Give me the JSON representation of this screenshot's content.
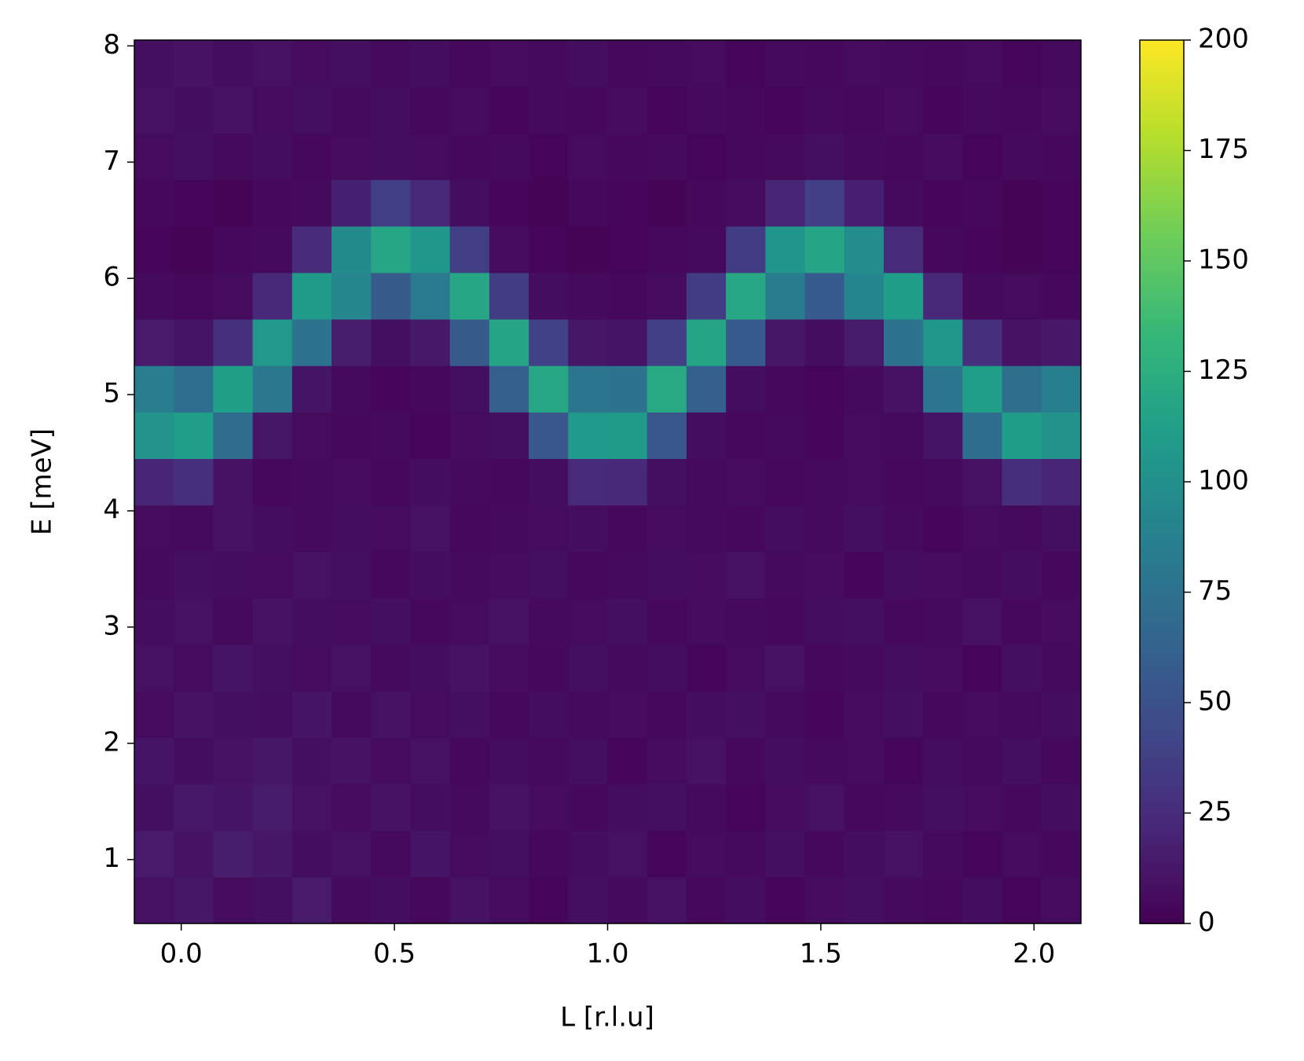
{
  "chart_data": {
    "type": "heatmap",
    "colormap": "viridis",
    "xlabel": "L [r.l.u]",
    "ylabel": "E [meV]",
    "xlim": [
      -0.11,
      2.11
    ],
    "ylim": [
      0.45,
      8.05
    ],
    "xticks": [
      {
        "value": 0,
        "label": "0.0"
      },
      0.5,
      {
        "value": 1,
        "label": "1.0"
      },
      1.5,
      {
        "value": 2,
        "label": "2.0"
      }
    ],
    "yticks": [
      1,
      2,
      3,
      4,
      5,
      6,
      7,
      8
    ],
    "clim": [
      0,
      200
    ],
    "cticks": [
      0,
      25,
      50,
      75,
      100,
      125,
      150,
      175,
      200
    ],
    "xbins": [
      -0.11,
      -0.0175,
      0.075,
      0.1675,
      0.26,
      0.3525,
      0.445,
      0.5375,
      0.63,
      0.7225,
      0.815,
      0.9075,
      1.0,
      1.0925,
      1.185,
      1.2775,
      1.37,
      1.4625,
      1.555,
      1.6475,
      1.74,
      1.8325,
      1.925,
      2.0175,
      2.11
    ],
    "ybins": [
      0.45,
      0.85,
      1.25,
      1.65,
      2.05,
      2.45,
      2.85,
      3.25,
      3.65,
      4.05,
      4.45,
      4.85,
      5.25,
      5.65,
      6.05,
      6.45,
      6.85,
      7.25,
      7.65,
      8.05
    ],
    "z": [
      [
        9,
        12,
        6,
        8,
        14,
        5,
        7,
        4,
        10,
        6,
        3,
        8,
        5,
        9,
        4,
        7,
        3,
        6,
        8,
        5,
        4,
        7,
        3,
        6
      ],
      [
        14,
        10,
        16,
        12,
        7,
        9,
        5,
        11,
        6,
        8,
        4,
        7,
        9,
        3,
        6,
        5,
        8,
        4,
        7,
        9,
        5,
        3,
        6,
        4
      ],
      [
        8,
        13,
        11,
        15,
        9,
        6,
        10,
        7,
        5,
        9,
        6,
        4,
        7,
        8,
        5,
        3,
        6,
        9,
        4,
        5,
        8,
        6,
        4,
        7
      ],
      [
        11,
        7,
        9,
        12,
        8,
        10,
        6,
        9,
        4,
        7,
        5,
        8,
        3,
        6,
        9,
        4,
        7,
        5,
        6,
        3,
        7,
        5,
        8,
        4
      ],
      [
        6,
        10,
        8,
        7,
        11,
        5,
        9,
        6,
        8,
        4,
        7,
        5,
        6,
        4,
        7,
        8,
        5,
        3,
        6,
        8,
        4,
        6,
        5,
        7
      ],
      [
        9,
        6,
        11,
        8,
        6,
        9,
        5,
        7,
        10,
        6,
        4,
        8,
        5,
        7,
        3,
        6,
        9,
        4,
        5,
        7,
        6,
        3,
        8,
        5
      ],
      [
        7,
        9,
        5,
        10,
        7,
        6,
        8,
        4,
        6,
        9,
        5,
        6,
        8,
        4,
        6,
        5,
        4,
        7,
        8,
        4,
        5,
        9,
        4,
        6
      ],
      [
        5,
        8,
        7,
        6,
        9,
        8,
        4,
        7,
        5,
        6,
        8,
        4,
        5,
        7,
        6,
        9,
        5,
        6,
        3,
        7,
        6,
        5,
        7,
        4
      ],
      [
        6,
        5,
        9,
        7,
        5,
        7,
        6,
        9,
        4,
        5,
        6,
        7,
        4,
        6,
        5,
        4,
        7,
        5,
        8,
        5,
        3,
        6,
        5,
        8
      ],
      [
        21,
        27,
        10,
        4,
        5,
        6,
        4,
        7,
        5,
        4,
        7,
        24,
        23,
        8,
        5,
        6,
        4,
        5,
        6,
        4,
        5,
        9,
        26,
        20
      ],
      [
        103,
        111,
        70,
        12,
        6,
        4,
        5,
        3,
        6,
        8,
        55,
        108,
        109,
        54,
        7,
        4,
        5,
        3,
        6,
        5,
        11,
        71,
        110,
        102
      ],
      [
        85,
        72,
        113,
        80,
        11,
        5,
        3,
        4,
        8,
        60,
        119,
        78,
        77,
        120,
        61,
        7,
        4,
        3,
        5,
        10,
        79,
        112,
        73,
        86
      ],
      [
        14,
        11,
        28,
        106,
        76,
        16,
        8,
        13,
        58,
        117,
        39,
        12,
        11,
        38,
        116,
        57,
        12,
        7,
        15,
        75,
        105,
        27,
        10,
        13
      ],
      [
        5,
        4,
        6,
        23,
        109,
        92,
        58,
        82,
        118,
        35,
        7,
        5,
        4,
        6,
        36,
        119,
        83,
        57,
        91,
        110,
        22,
        5,
        6,
        4
      ],
      [
        3,
        2,
        4,
        5,
        25,
        96,
        118,
        105,
        37,
        6,
        3,
        2,
        3,
        4,
        5,
        36,
        104,
        117,
        97,
        24,
        4,
        3,
        2,
        3
      ],
      [
        4,
        3,
        2,
        4,
        5,
        18,
        37,
        22,
        7,
        3,
        2,
        4,
        3,
        2,
        4,
        6,
        21,
        38,
        17,
        5,
        3,
        4,
        2,
        3
      ],
      [
        6,
        8,
        5,
        7,
        4,
        6,
        7,
        6,
        4,
        5,
        3,
        6,
        4,
        5,
        3,
        4,
        5,
        8,
        5,
        4,
        6,
        3,
        5,
        4
      ],
      [
        9,
        7,
        10,
        6,
        8,
        5,
        7,
        4,
        6,
        3,
        5,
        4,
        6,
        3,
        5,
        4,
        3,
        5,
        4,
        6,
        3,
        5,
        4,
        6
      ],
      [
        8,
        10,
        7,
        9,
        6,
        8,
        5,
        7,
        4,
        6,
        5,
        7,
        4,
        5,
        6,
        3,
        5,
        4,
        6,
        5,
        4,
        6,
        3,
        5
      ]
    ]
  }
}
